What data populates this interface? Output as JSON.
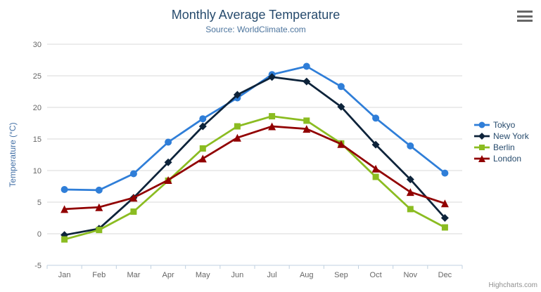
{
  "header": {
    "title": "Monthly Average Temperature",
    "subtitle": "Source: WorldClimate.com"
  },
  "export_menu": {
    "icon": "hamburger-icon"
  },
  "credits": {
    "label": "Highcharts.com"
  },
  "colors": {
    "title_text": "#274b6d",
    "subtitle_text": "#4d759e",
    "axis_label_text": "#666666",
    "yaxis_title_text": "#4572a7",
    "gridline": "#d8d8d8",
    "xaxis_line": "#c0d0e0",
    "legend_text": "#274b6d",
    "credits_text": "#909090",
    "export_icon": "#666666",
    "background": "#ffffff"
  },
  "chart_data": {
    "type": "line",
    "title": "Monthly Average Temperature",
    "subtitle": "Source: WorldClimate.com",
    "xlabel": "",
    "ylabel": "Temperature (°C)",
    "ylim": [
      -5,
      30
    ],
    "ytick_step": 5,
    "grid": true,
    "legend_position": "right",
    "categories": [
      "Jan",
      "Feb",
      "Mar",
      "Apr",
      "May",
      "Jun",
      "Jul",
      "Aug",
      "Sep",
      "Oct",
      "Nov",
      "Dec"
    ],
    "series": [
      {
        "name": "Tokyo",
        "color": "#2f7ed8",
        "marker": "circle",
        "values": [
          7.0,
          6.9,
          9.5,
          14.5,
          18.2,
          21.5,
          25.2,
          26.5,
          23.3,
          18.3,
          13.9,
          9.6
        ]
      },
      {
        "name": "New York",
        "color": "#0d233a",
        "marker": "diamond",
        "values": [
          -0.2,
          0.8,
          5.7,
          11.3,
          17.0,
          22.0,
          24.8,
          24.1,
          20.1,
          14.1,
          8.6,
          2.5
        ]
      },
      {
        "name": "Berlin",
        "color": "#8bbc21",
        "marker": "square",
        "values": [
          -0.9,
          0.6,
          3.5,
          8.4,
          13.5,
          17.0,
          18.6,
          17.9,
          14.3,
          9.0,
          3.9,
          1.0
        ]
      },
      {
        "name": "London",
        "color": "#910000",
        "marker": "triangle",
        "values": [
          3.9,
          4.2,
          5.7,
          8.5,
          11.9,
          15.2,
          17.0,
          16.6,
          14.2,
          10.3,
          6.6,
          4.8
        ]
      }
    ]
  }
}
